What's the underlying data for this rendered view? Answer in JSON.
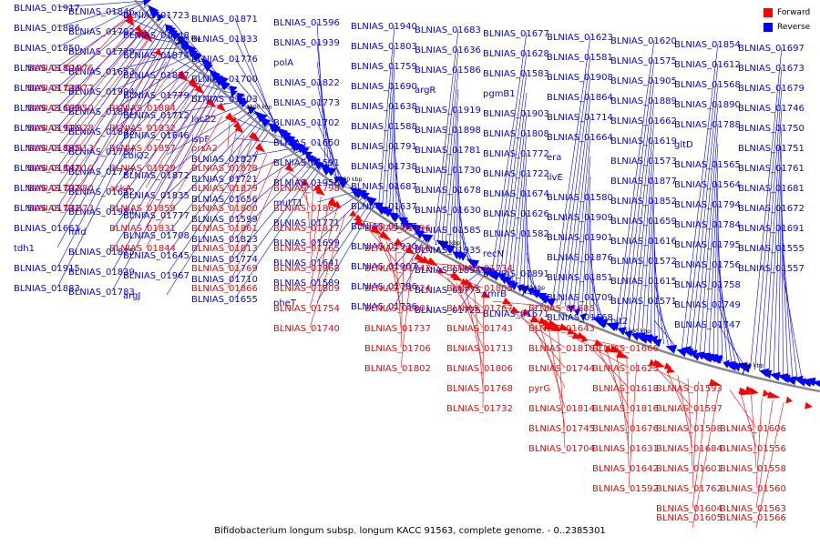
{
  "caption": "Bifidobacterium longum subsp. longum KACC 91563, complete genome. - 0..2385301",
  "legend": [
    {
      "label": "Forward",
      "color": "#ff0000"
    },
    {
      "label": "Reverse",
      "color": "#0000ff"
    }
  ],
  "colors": {
    "forward": "#ff0000",
    "reverse": "#0000ff",
    "backbone": "#888888"
  },
  "scale_ticks": [
    "1550 kbp",
    "1500 kbp",
    "1450 kbp",
    "1400 kbp",
    "1350 kbp",
    "1300 kbp",
    "1250 kbp"
  ],
  "reverse_labels": [
    "BLNIAS_01917",
    "BLNIAS_01886",
    "BLNIAS_01850",
    "BLNIAS_01804",
    "BLNIAS_01739",
    "BLNIAS_01669",
    "BLNIAS_01916",
    "BLNIAS_01885",
    "BLNIAS_01847",
    "BLNIAS_01797",
    "BLNIAS_01731",
    "BLNIAS_01661",
    "tdh1",
    "BLNIAS_01915",
    "BLNIAS_01883",
    "BLNIAS_01846",
    "BLNIAS_01792",
    "BLNIAS_01729",
    "BLNIAS_01653",
    "BLNIAS_01994",
    "BLNIAS_01881",
    "BLNIAS_01843",
    "BLNIAS_01787",
    "BLNIAS_01727",
    "BLNIAS_01652",
    "BLNIAS_01984",
    "mfd",
    "BLNIAS_01875",
    "BLNIAS_01839",
    "BLNIAS_01783",
    "BLNIAS_01723",
    "BLNIAS_01648",
    "BLNIAS_01874",
    "BLNIAS_01837",
    "BLNIAS_01779",
    "BLNIAS_01712",
    "BLNIAS_01646",
    "cbiQ2",
    "BLNIAS_01872",
    "BLNIAS_01835",
    "BLNIAS_01777",
    "BLNIAS_01708",
    "BLNIAS_01645",
    "BLNIAS_01967",
    "argJ",
    "BLNIAS_01871",
    "BLNIAS_01833",
    "BLNIAS_01776",
    "BLNIAS_01700",
    "BLNIAS_01603",
    "lacZ2",
    "ispF",
    "BLNIAS_01827",
    "BLNIAS_01721",
    "BLNIAS_01656",
    "BLNIAS_01599",
    "BLNIAS_01823",
    "BLNIAS_01774",
    "BLNIAS_01710",
    "BLNIAS_01655",
    "BLNIAS_01596",
    "BLNIAS_01939",
    "polA",
    "BLNIAS_01822",
    "BLNIAS_01773",
    "BLNIAS_01702",
    "BLNIAS_01650",
    "BLNIAS_01591",
    "BLNIAS_01956",
    "mutT1",
    "BLNIAS_01771",
    "BLNIAS_01699",
    "BLNIAS_01641",
    "BLNIAS_01589",
    "pheT",
    "BLNIAS_01940",
    "BLNIAS_01803",
    "BLNIAS_01759",
    "BLNIAS_01690",
    "BLNIAS_01638",
    "BLNIAS_01588",
    "BLNIAS_01791",
    "BLNIAS_01738",
    "BLNIAS_01687",
    "BLNIAS_01637",
    "BLNIAS_01587",
    "BLNIAS_01930",
    "BLNIAS_01907",
    "BLNIAS_01786",
    "BLNIAS_01736",
    "BLNIAS_01683",
    "BLNIAS_01636",
    "BLNIAS_01586",
    "argR",
    "BLNIAS_01919",
    "BLNIAS_01898",
    "BLNIAS_01781",
    "BLNIAS_01730",
    "BLNIAS_01678",
    "BLNIAS_01630",
    "BLNIAS_01585",
    "BLNIAS_01935",
    "BLNIAS_01894",
    "BLNIAS_01775",
    "BLNIAS_01725",
    "BLNIAS_01677",
    "BLNIAS_01628",
    "BLNIAS_01583",
    "pgmB1",
    "BLNIAS_01903",
    "BLNIAS_01808",
    "BLNIAS_01772",
    "BLNIAS_01722",
    "BLNIAS_01674",
    "BLNIAS_01626",
    "BLNIAS_01582",
    "recN",
    "BLNIAS_01891",
    "smrB",
    "BLNIAS_01671",
    "BLNIAS_01623",
    "BLNIAS_01581",
    "BLNIAS_01908",
    "BLNIAS_01864",
    "BLNIAS_01714",
    "BLNIAS_01664",
    "era",
    "ilvE",
    "BLNIAS_01580",
    "BLNIAS_01909",
    "BLNIAS_01901",
    "BLNIAS_01876",
    "BLNIAS_01851",
    "BLNIAS_01709",
    "BLNIAS_01668",
    "BLNIAS_01620",
    "BLNIAS_01575",
    "BLNIAS_01905",
    "BLNIAS_01889",
    "BLNIAS_01662",
    "BLNIAS_01619",
    "BLNIAS_01573",
    "BLNIAS_01877",
    "BLNIAS_01852",
    "BLNIAS_01659",
    "BLNIAS_01616",
    "BLNIAS_01572",
    "BLNIAS_01615",
    "BLNIAS_01571",
    "hit2",
    "BLNIAS_01854",
    "BLNIAS_01612",
    "BLNIAS_01568",
    "BLNIAS_01890",
    "BLNIAS_01788",
    "gltD",
    "BLNIAS_01565",
    "BLNIAS_01564",
    "BLNIAS_01794",
    "BLNIAS_01784",
    "BLNIAS_01795",
    "BLNIAS_01756",
    "BLNIAS_01758",
    "BLNIAS_01749",
    "BLNIAS_01747",
    "BLNIAS_01697",
    "BLNIAS_01673",
    "BLNIAS_01679",
    "BLNIAS_01746",
    "BLNIAS_01750",
    "BLNIAS_01751",
    "BLNIAS_01761",
    "BLNIAS_01681",
    "BLNIAS_01672",
    "BLNIAS_01691",
    "BLNIAS_01555",
    "BLNIAS_01557"
  ],
  "forward_labels": [
    "BLNIAS_01976",
    "BLNIAS_01977",
    "BLNIAS_01950",
    "BLNIAS_01928",
    "BLNIAS_01913",
    "BLNIAS_01910",
    "BLNIAS_01880",
    "BLNIAS_01873",
    "BLNIAS_01884",
    "BLNIAS_01832",
    "BLNIAS_01857",
    "BLNIAS_01829",
    "ackA",
    "BLNIAS_01859",
    "BLNIAS_01831",
    "BLNIAS_01844",
    "prsA2",
    "BLNIAS_01878",
    "BLNIAS_01879",
    "BLNIAS_01800",
    "BLNIAS_01861",
    "BLNIAS_01813",
    "BLNIAS_01769",
    "BLNIAS_01866",
    "BLNIAS_01798",
    "BLNIAS_01867",
    "BLNIAS_01817",
    "BLNIAS_01765",
    "BLNIAS_01868",
    "BLNIAS_01809",
    "BLNIAS_01754",
    "BLNIAS_01740",
    "BLNIAS_01796",
    "BLNIAS_01766",
    "BLNIAS_01742",
    "BLNIAS_01724",
    "BLNIAS_01801",
    "BLNIAS_01737",
    "BLNIAS_01706",
    "BLNIAS_01802",
    "BLNIAS_01734",
    "BLNIAS_01805",
    "BLNIAS_01767",
    "BLNIAS_01743",
    "BLNIAS_01713",
    "BLNIAS_01806",
    "BLNIAS_01768",
    "BLNIAS_01732",
    "BLNIAS_01685",
    "BLNIAS_01643",
    "BLNIAS_01810",
    "BLNIAS_01744",
    "pyrG",
    "BLNIAS_01814",
    "BLNIAS_01745",
    "BLNIAS_01704",
    "BLNIAS_01666",
    "BLNIAS_01625",
    "BLNIAS_01618",
    "BLNIAS_01816",
    "BLNIAS_01676",
    "BLNIAS_01631",
    "BLNIAS_01642",
    "BLNIAS_01592",
    "BLNIAS_01593",
    "BLNIAS_01597",
    "BLNIAS_01598",
    "BLNIAS_01684",
    "BLNIAS_01601",
    "BLNIAS_01762",
    "BLNIAS_01604",
    "BLNIAS_01605",
    "BLNIAS_01606",
    "BLNIAS_01556",
    "BLNIAS_01558",
    "BLNIAS_01560",
    "BLNIAS_01563",
    "BLNIAS_01566"
  ]
}
